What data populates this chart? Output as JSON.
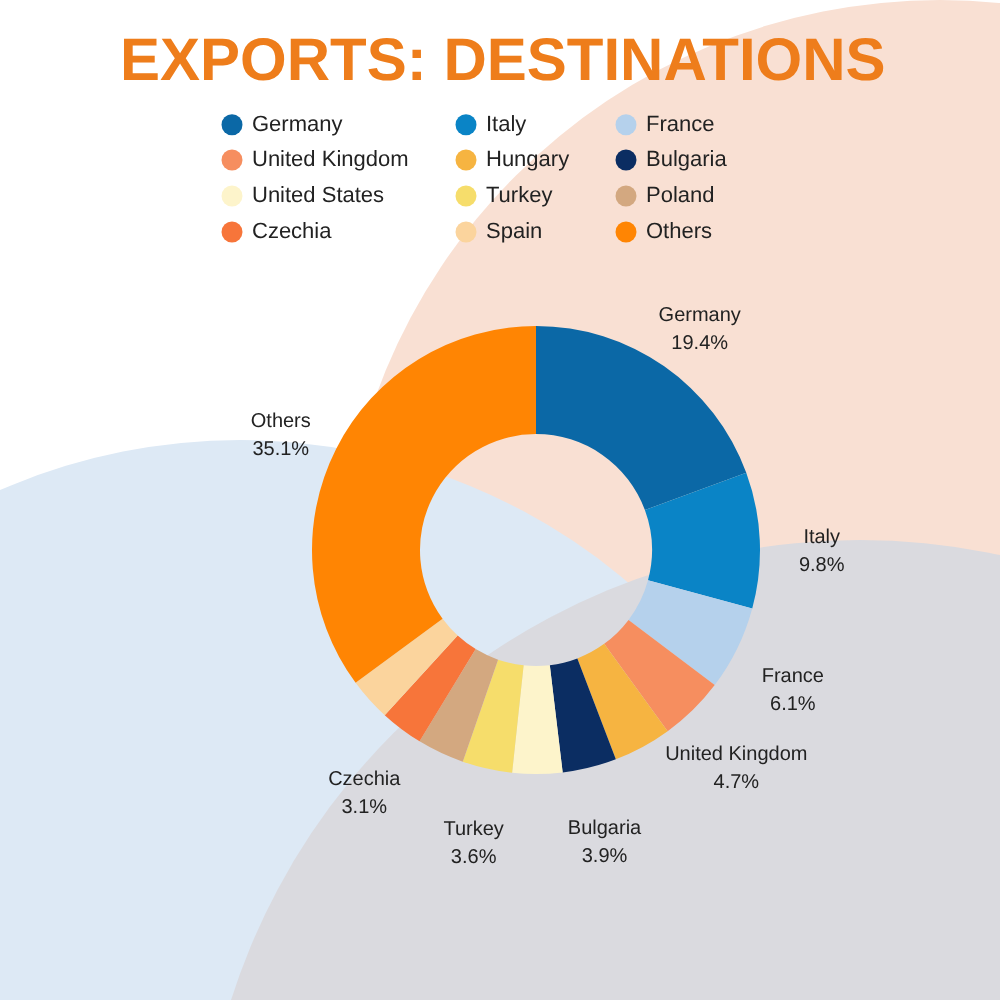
{
  "chart_data": {
    "type": "donut",
    "title": "EXPORTS: DESTINATIONS",
    "categories": [
      "Germany",
      "Italy",
      "France",
      "United Kingdom",
      "Hungary",
      "Bulgaria",
      "United States",
      "Turkey",
      "Poland",
      "Czechia",
      "Spain",
      "Others"
    ],
    "values": [
      19.4,
      9.8,
      6.1,
      4.7,
      4.2,
      3.9,
      3.6,
      3.6,
      3.4,
      3.1,
      3.1,
      35.1
    ],
    "colors": [
      "#0b68a6",
      "#0a84c6",
      "#b5d1ec",
      "#f68e5f",
      "#f6b441",
      "#0b2d62",
      "#fdf4cb",
      "#f6dd6b",
      "#d3a880",
      "#f7753a",
      "#fbd49d",
      "#ff8503"
    ],
    "value_labels": [
      "19.4%",
      "9.8%",
      "6.1%",
      "4.7%",
      null,
      "3.9%",
      null,
      "3.6%",
      null,
      "3.1%",
      null,
      "35.1%"
    ],
    "legend": "top"
  }
}
